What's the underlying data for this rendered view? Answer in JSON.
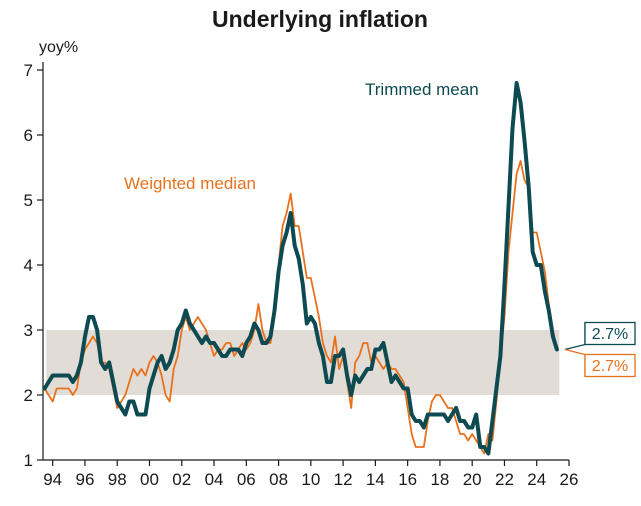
{
  "chart_data": {
    "type": "line",
    "title": "Underlying inflation",
    "ylabel": "yoy%",
    "xlabel": "",
    "ylim": [
      1,
      7
    ],
    "xlim": [
      1993.4,
      2026
    ],
    "yticks": [
      1,
      2,
      3,
      4,
      5,
      6,
      7
    ],
    "xticks": [
      1994,
      1996,
      1998,
      2000,
      2002,
      2004,
      2006,
      2008,
      2010,
      2012,
      2014,
      2016,
      2018,
      2020,
      2022,
      2024,
      2026
    ],
    "xtick_labels": [
      "94",
      "96",
      "98",
      "00",
      "02",
      "04",
      "06",
      "08",
      "10",
      "12",
      "14",
      "16",
      "18",
      "20",
      "22",
      "24",
      "26"
    ],
    "target_band": {
      "low": 2,
      "high": 3,
      "color": "#e2dcd7"
    },
    "series": [
      {
        "name": "Trimmed mean",
        "color": "#0d4a52",
        "end_label": "2.7%",
        "points": [
          [
            1993.5,
            2.1
          ],
          [
            1993.75,
            2.2
          ],
          [
            1994.0,
            2.3
          ],
          [
            1994.25,
            2.3
          ],
          [
            1994.5,
            2.3
          ],
          [
            1994.75,
            2.3
          ],
          [
            1995.0,
            2.3
          ],
          [
            1995.25,
            2.2
          ],
          [
            1995.5,
            2.3
          ],
          [
            1995.75,
            2.5
          ],
          [
            1996.0,
            2.9
          ],
          [
            1996.25,
            3.2
          ],
          [
            1996.5,
            3.2
          ],
          [
            1996.75,
            3.0
          ],
          [
            1997.0,
            2.5
          ],
          [
            1997.25,
            2.4
          ],
          [
            1997.5,
            2.5
          ],
          [
            1997.75,
            2.2
          ],
          [
            1998.0,
            1.9
          ],
          [
            1998.25,
            1.8
          ],
          [
            1998.5,
            1.7
          ],
          [
            1998.75,
            1.9
          ],
          [
            1999.0,
            1.9
          ],
          [
            1999.25,
            1.7
          ],
          [
            1999.5,
            1.7
          ],
          [
            1999.75,
            1.7
          ],
          [
            2000.0,
            2.1
          ],
          [
            2000.25,
            2.3
          ],
          [
            2000.5,
            2.5
          ],
          [
            2000.75,
            2.6
          ],
          [
            2001.0,
            2.4
          ],
          [
            2001.25,
            2.5
          ],
          [
            2001.5,
            2.7
          ],
          [
            2001.75,
            3.0
          ],
          [
            2002.0,
            3.1
          ],
          [
            2002.25,
            3.3
          ],
          [
            2002.5,
            3.1
          ],
          [
            2002.75,
            3.0
          ],
          [
            2003.0,
            2.9
          ],
          [
            2003.25,
            2.8
          ],
          [
            2003.5,
            2.9
          ],
          [
            2003.75,
            2.8
          ],
          [
            2004.0,
            2.8
          ],
          [
            2004.25,
            2.7
          ],
          [
            2004.5,
            2.6
          ],
          [
            2004.75,
            2.6
          ],
          [
            2005.0,
            2.7
          ],
          [
            2005.25,
            2.7
          ],
          [
            2005.5,
            2.7
          ],
          [
            2005.75,
            2.6
          ],
          [
            2006.0,
            2.8
          ],
          [
            2006.25,
            2.9
          ],
          [
            2006.5,
            3.1
          ],
          [
            2006.75,
            3.0
          ],
          [
            2007.0,
            2.8
          ],
          [
            2007.25,
            2.8
          ],
          [
            2007.5,
            2.9
          ],
          [
            2007.75,
            3.3
          ],
          [
            2008.0,
            3.9
          ],
          [
            2008.25,
            4.3
          ],
          [
            2008.5,
            4.5
          ],
          [
            2008.75,
            4.8
          ],
          [
            2009.0,
            4.3
          ],
          [
            2009.25,
            4.1
          ],
          [
            2009.5,
            3.7
          ],
          [
            2009.75,
            3.1
          ],
          [
            2010.0,
            3.2
          ],
          [
            2010.25,
            3.1
          ],
          [
            2010.5,
            2.8
          ],
          [
            2010.75,
            2.6
          ],
          [
            2011.0,
            2.2
          ],
          [
            2011.25,
            2.2
          ],
          [
            2011.5,
            2.6
          ],
          [
            2011.75,
            2.6
          ],
          [
            2012.0,
            2.7
          ],
          [
            2012.25,
            2.3
          ],
          [
            2012.5,
            2.0
          ],
          [
            2012.75,
            2.3
          ],
          [
            2013.0,
            2.2
          ],
          [
            2013.25,
            2.3
          ],
          [
            2013.5,
            2.4
          ],
          [
            2013.75,
            2.4
          ],
          [
            2014.0,
            2.7
          ],
          [
            2014.25,
            2.7
          ],
          [
            2014.5,
            2.8
          ],
          [
            2014.75,
            2.5
          ],
          [
            2015.0,
            2.2
          ],
          [
            2015.25,
            2.3
          ],
          [
            2015.5,
            2.2
          ],
          [
            2015.75,
            2.1
          ],
          [
            2016.0,
            2.1
          ],
          [
            2016.25,
            1.7
          ],
          [
            2016.5,
            1.6
          ],
          [
            2016.75,
            1.6
          ],
          [
            2017.0,
            1.5
          ],
          [
            2017.25,
            1.7
          ],
          [
            2017.5,
            1.7
          ],
          [
            2017.75,
            1.7
          ],
          [
            2018.0,
            1.7
          ],
          [
            2018.25,
            1.7
          ],
          [
            2018.5,
            1.6
          ],
          [
            2018.75,
            1.7
          ],
          [
            2019.0,
            1.8
          ],
          [
            2019.25,
            1.6
          ],
          [
            2019.5,
            1.6
          ],
          [
            2019.75,
            1.5
          ],
          [
            2020.0,
            1.5
          ],
          [
            2020.25,
            1.7
          ],
          [
            2020.5,
            1.2
          ],
          [
            2020.75,
            1.2
          ],
          [
            2021.0,
            1.1
          ],
          [
            2021.25,
            1.6
          ],
          [
            2021.5,
            2.1
          ],
          [
            2021.75,
            2.6
          ],
          [
            2022.0,
            3.7
          ],
          [
            2022.25,
            4.9
          ],
          [
            2022.5,
            6.1
          ],
          [
            2022.75,
            6.8
          ],
          [
            2023.0,
            6.5
          ],
          [
            2023.25,
            5.9
          ],
          [
            2023.5,
            5.2
          ],
          [
            2023.75,
            4.2
          ],
          [
            2024.0,
            4.0
          ],
          [
            2024.25,
            4.0
          ],
          [
            2024.5,
            3.6
          ],
          [
            2024.75,
            3.3
          ],
          [
            2025.0,
            2.9
          ],
          [
            2025.25,
            2.7
          ]
        ]
      },
      {
        "name": "Weighted median",
        "color": "#e9711c",
        "end_label": "2.7%",
        "points": [
          [
            1993.5,
            2.1
          ],
          [
            1993.75,
            2.0
          ],
          [
            1994.0,
            1.9
          ],
          [
            1994.25,
            2.1
          ],
          [
            1994.5,
            2.1
          ],
          [
            1994.75,
            2.1
          ],
          [
            1995.0,
            2.1
          ],
          [
            1995.25,
            2.0
          ],
          [
            1995.5,
            2.1
          ],
          [
            1995.75,
            2.5
          ],
          [
            1996.0,
            2.7
          ],
          [
            1996.25,
            2.8
          ],
          [
            1996.5,
            2.9
          ],
          [
            1996.75,
            2.8
          ],
          [
            1997.0,
            2.5
          ],
          [
            1997.25,
            2.5
          ],
          [
            1997.5,
            2.4
          ],
          [
            1997.75,
            2.1
          ],
          [
            1998.0,
            1.8
          ],
          [
            1998.25,
            1.9
          ],
          [
            1998.5,
            2.0
          ],
          [
            1998.75,
            2.2
          ],
          [
            1999.0,
            2.4
          ],
          [
            1999.25,
            2.3
          ],
          [
            1999.5,
            2.4
          ],
          [
            1999.75,
            2.3
          ],
          [
            2000.0,
            2.5
          ],
          [
            2000.25,
            2.6
          ],
          [
            2000.5,
            2.5
          ],
          [
            2000.75,
            2.3
          ],
          [
            2001.0,
            2.0
          ],
          [
            2001.25,
            1.9
          ],
          [
            2001.5,
            2.4
          ],
          [
            2001.75,
            2.6
          ],
          [
            2002.0,
            3.0
          ],
          [
            2002.25,
            3.2
          ],
          [
            2002.5,
            3.0
          ],
          [
            2002.75,
            3.1
          ],
          [
            2003.0,
            3.2
          ],
          [
            2003.25,
            3.1
          ],
          [
            2003.5,
            3.0
          ],
          [
            2003.75,
            2.8
          ],
          [
            2004.0,
            2.6
          ],
          [
            2004.25,
            2.7
          ],
          [
            2004.5,
            2.7
          ],
          [
            2004.75,
            2.8
          ],
          [
            2005.0,
            2.8
          ],
          [
            2005.25,
            2.6
          ],
          [
            2005.5,
            2.7
          ],
          [
            2005.75,
            2.8
          ],
          [
            2006.0,
            2.7
          ],
          [
            2006.25,
            2.8
          ],
          [
            2006.5,
            3.0
          ],
          [
            2006.75,
            3.4
          ],
          [
            2007.0,
            3.0
          ],
          [
            2007.25,
            2.8
          ],
          [
            2007.5,
            2.8
          ],
          [
            2007.75,
            3.2
          ],
          [
            2008.0,
            4.0
          ],
          [
            2008.25,
            4.6
          ],
          [
            2008.5,
            4.8
          ],
          [
            2008.75,
            5.1
          ],
          [
            2009.0,
            4.6
          ],
          [
            2009.25,
            4.6
          ],
          [
            2009.5,
            4.2
          ],
          [
            2009.75,
            3.8
          ],
          [
            2010.0,
            3.8
          ],
          [
            2010.25,
            3.5
          ],
          [
            2010.5,
            3.2
          ],
          [
            2010.75,
            2.8
          ],
          [
            2011.0,
            2.6
          ],
          [
            2011.25,
            2.5
          ],
          [
            2011.5,
            2.9
          ],
          [
            2011.75,
            2.4
          ],
          [
            2012.0,
            2.6
          ],
          [
            2012.25,
            2.2
          ],
          [
            2012.5,
            1.8
          ],
          [
            2012.75,
            2.5
          ],
          [
            2013.0,
            2.6
          ],
          [
            2013.25,
            2.8
          ],
          [
            2013.5,
            2.8
          ],
          [
            2013.75,
            2.5
          ],
          [
            2014.0,
            2.6
          ],
          [
            2014.25,
            2.5
          ],
          [
            2014.5,
            2.4
          ],
          [
            2014.75,
            2.5
          ],
          [
            2015.0,
            2.4
          ],
          [
            2015.25,
            2.4
          ],
          [
            2015.5,
            2.3
          ],
          [
            2015.75,
            2.2
          ],
          [
            2016.0,
            1.8
          ],
          [
            2016.25,
            1.4
          ],
          [
            2016.5,
            1.2
          ],
          [
            2016.75,
            1.2
          ],
          [
            2017.0,
            1.2
          ],
          [
            2017.25,
            1.6
          ],
          [
            2017.5,
            1.9
          ],
          [
            2017.75,
            2.0
          ],
          [
            2018.0,
            2.0
          ],
          [
            2018.25,
            1.9
          ],
          [
            2018.5,
            1.8
          ],
          [
            2018.75,
            1.8
          ],
          [
            2019.0,
            1.6
          ],
          [
            2019.25,
            1.4
          ],
          [
            2019.5,
            1.4
          ],
          [
            2019.75,
            1.3
          ],
          [
            2020.0,
            1.4
          ],
          [
            2020.25,
            1.3
          ],
          [
            2020.5,
            1.2
          ],
          [
            2020.75,
            1.1
          ],
          [
            2021.0,
            1.4
          ],
          [
            2021.25,
            1.3
          ],
          [
            2021.5,
            1.9
          ],
          [
            2021.75,
            2.6
          ],
          [
            2022.0,
            3.2
          ],
          [
            2022.25,
            4.2
          ],
          [
            2022.5,
            4.8
          ],
          [
            2022.75,
            5.4
          ],
          [
            2023.0,
            5.6
          ],
          [
            2023.25,
            5.3
          ],
          [
            2023.5,
            5.2
          ],
          [
            2023.75,
            4.5
          ],
          [
            2024.0,
            4.5
          ],
          [
            2024.25,
            4.2
          ],
          [
            2024.5,
            3.9
          ],
          [
            2024.75,
            3.4
          ],
          [
            2025.0,
            3.0
          ],
          [
            2025.25,
            2.7
          ]
        ]
      }
    ]
  }
}
